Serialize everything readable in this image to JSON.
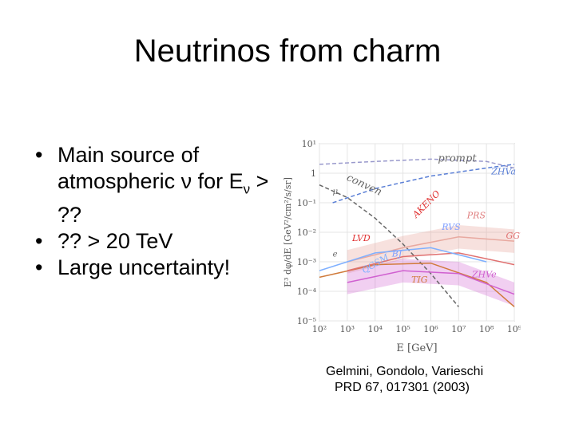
{
  "slide": {
    "title": "Neutrinos from charm",
    "bullets": [
      {
        "main": "Main source of atmospheric ν for E",
        "sub": "ν",
        "tail": " > ??"
      },
      {
        "main": "?? > 20 TeV",
        "sub": "",
        "tail": ""
      },
      {
        "main": "Large uncertainty!",
        "sub": "",
        "tail": ""
      }
    ],
    "citation": {
      "line1": "Gelmini, Gondolo, Varieschi",
      "line2": "PRD 67, 017301 (2003)"
    }
  },
  "chart_data": {
    "type": "line",
    "xscale": "log",
    "yscale": "log",
    "xlim": [
      100,
      1000000000
    ],
    "ylim": [
      1e-05,
      10
    ],
    "xticks": [
      "10²",
      "10³",
      "10⁴",
      "10⁵",
      "10⁶",
      "10⁷",
      "10⁸",
      "10⁹"
    ],
    "yticks": [
      "10¹",
      "1",
      "10⁻¹",
      "10⁻²",
      "10⁻³",
      "10⁻⁴",
      "10⁻⁵"
    ],
    "xlabel": "E [GeV]",
    "ylabel": "E³ dφ/dE  [GeV²/cm²/s/sr]",
    "labels": [
      "prompt",
      "conven",
      "ZHVa",
      "AKENO",
      "LVD",
      "RVS",
      "PRS",
      "GGV",
      "BJ",
      "QGSM",
      "TIG",
      "ZHVe",
      "μ",
      "e"
    ],
    "series": [
      {
        "name": "prompt",
        "color": "#9999cc",
        "x": [
          100,
          10000,
          1000000,
          100000000,
          1000000000
        ],
        "y": [
          2,
          2.5,
          3,
          2.5,
          1.5
        ]
      },
      {
        "name": "conven",
        "color": "#666666",
        "x": [
          100,
          1000,
          10000,
          100000,
          1000000,
          10000000
        ],
        "y": [
          0.4,
          0.15,
          0.03,
          0.004,
          0.0004,
          3e-05
        ]
      },
      {
        "name": "ZHVa",
        "color": "#5a7fd6",
        "x": [
          300,
          10000,
          1000000,
          100000000,
          1000000000
        ],
        "y": [
          0.1,
          0.3,
          0.8,
          1.5,
          2
        ]
      },
      {
        "name": "TIG",
        "color": "#d07a3a",
        "x": [
          100,
          10000,
          1000000,
          100000000,
          1000000000
        ],
        "y": [
          0.0003,
          0.0008,
          0.0009,
          0.0002,
          3e-05
        ]
      },
      {
        "name": "PRS",
        "color": "#e8a9a0",
        "x": [
          1000,
          100000,
          10000000,
          1000000000
        ],
        "y": [
          0.001,
          0.003,
          0.007,
          0.005
        ]
      },
      {
        "name": "GGV",
        "color": "#e07070",
        "x": [
          1000,
          100000,
          10000000,
          1000000000
        ],
        "y": [
          0.0005,
          0.0015,
          0.002,
          0.0008
        ]
      },
      {
        "name": "ZHVe",
        "color": "#d060d0",
        "x": [
          1000,
          100000,
          10000000,
          1000000000
        ],
        "y": [
          0.0002,
          0.0005,
          0.0004,
          8e-05
        ]
      },
      {
        "name": "QGSM",
        "color": "#7fb0ff",
        "x": [
          100,
          10000,
          1000000,
          100000000
        ],
        "y": [
          0.0005,
          0.002,
          0.003,
          0.001
        ]
      }
    ]
  }
}
